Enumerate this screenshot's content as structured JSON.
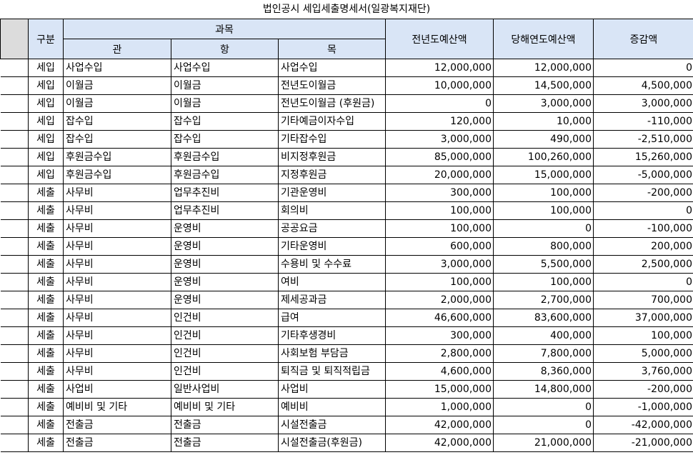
{
  "title": "법인공시 세입세출명세서(일광복지재단)",
  "headers": {
    "gubun": "구분",
    "gwamok": "과목",
    "gwan": "관",
    "hang": "항",
    "mok": "목",
    "prev": "전년도예산액",
    "curr": "당해연도예산액",
    "diff": "증감액"
  },
  "rows": [
    {
      "gubun": "세입",
      "gwan": "사업수입",
      "hang": "사업수입",
      "mok": "사업수입",
      "prev": "12,000,000",
      "curr": "12,000,000",
      "diff": "0"
    },
    {
      "gubun": "세입",
      "gwan": "이월금",
      "hang": "이월금",
      "mok": "전년도이월금",
      "prev": "10,000,000",
      "curr": "14,500,000",
      "diff": "4,500,000"
    },
    {
      "gubun": "세입",
      "gwan": "이월금",
      "hang": "이월금",
      "mok": "전년도이월금 (후원금)",
      "prev": "0",
      "curr": "3,000,000",
      "diff": "3,000,000"
    },
    {
      "gubun": "세입",
      "gwan": "잡수입",
      "hang": "잡수입",
      "mok": "기타예금이자수입",
      "prev": "120,000",
      "curr": "10,000",
      "diff": "-110,000"
    },
    {
      "gubun": "세입",
      "gwan": "잡수입",
      "hang": "잡수입",
      "mok": "기타잡수입",
      "prev": "3,000,000",
      "curr": "490,000",
      "diff": "-2,510,000"
    },
    {
      "gubun": "세입",
      "gwan": "후원금수입",
      "hang": "후원금수입",
      "mok": "비지정후원금",
      "prev": "85,000,000",
      "curr": "100,260,000",
      "diff": "15,260,000"
    },
    {
      "gubun": "세입",
      "gwan": "후원금수입",
      "hang": "후원금수입",
      "mok": "지정후원금",
      "prev": "20,000,000",
      "curr": "15,000,000",
      "diff": "-5,000,000"
    },
    {
      "gubun": "세출",
      "gwan": "사무비",
      "hang": "업무추진비",
      "mok": "기관운영비",
      "prev": "300,000",
      "curr": "100,000",
      "diff": "-200,000"
    },
    {
      "gubun": "세출",
      "gwan": "사무비",
      "hang": "업무추진비",
      "mok": "회의비",
      "prev": "100,000",
      "curr": "100,000",
      "diff": "0"
    },
    {
      "gubun": "세출",
      "gwan": "사무비",
      "hang": "운영비",
      "mok": "공공요금",
      "prev": "100,000",
      "curr": "0",
      "diff": "-100,000"
    },
    {
      "gubun": "세출",
      "gwan": "사무비",
      "hang": "운영비",
      "mok": "기타운영비",
      "prev": "600,000",
      "curr": "800,000",
      "diff": "200,000"
    },
    {
      "gubun": "세출",
      "gwan": "사무비",
      "hang": "운영비",
      "mok": "수용비 및 수수료",
      "prev": "3,000,000",
      "curr": "5,500,000",
      "diff": "2,500,000"
    },
    {
      "gubun": "세출",
      "gwan": "사무비",
      "hang": "운영비",
      "mok": "여비",
      "prev": "100,000",
      "curr": "100,000",
      "diff": "0"
    },
    {
      "gubun": "세출",
      "gwan": "사무비",
      "hang": "운영비",
      "mok": "제세공과금",
      "prev": "2,000,000",
      "curr": "2,700,000",
      "diff": "700,000"
    },
    {
      "gubun": "세출",
      "gwan": "사무비",
      "hang": "인건비",
      "mok": "급여",
      "prev": "46,600,000",
      "curr": "83,600,000",
      "diff": "37,000,000"
    },
    {
      "gubun": "세출",
      "gwan": "사무비",
      "hang": "인건비",
      "mok": "기타후생경비",
      "prev": "300,000",
      "curr": "400,000",
      "diff": "100,000"
    },
    {
      "gubun": "세출",
      "gwan": "사무비",
      "hang": "인건비",
      "mok": "사회보험 부담금",
      "prev": "2,800,000",
      "curr": "7,800,000",
      "diff": "5,000,000"
    },
    {
      "gubun": "세출",
      "gwan": "사무비",
      "hang": "인건비",
      "mok": "퇴직금 및 퇴직적립금",
      "prev": "4,600,000",
      "curr": "8,360,000",
      "diff": "3,760,000"
    },
    {
      "gubun": "세출",
      "gwan": "사업비",
      "hang": "일반사업비",
      "mok": "사업비",
      "prev": "15,000,000",
      "curr": "14,800,000",
      "diff": "-200,000"
    },
    {
      "gubun": "세출",
      "gwan": "예비비 및 기타",
      "hang": "예비비 및 기타",
      "mok": "예비비",
      "prev": "1,000,000",
      "curr": "0",
      "diff": "-1,000,000"
    },
    {
      "gubun": "세출",
      "gwan": "전출금",
      "hang": "전출금",
      "mok": "시설전출금",
      "prev": "42,000,000",
      "curr": "0",
      "diff": "-42,000,000"
    },
    {
      "gubun": "세출",
      "gwan": "전출금",
      "hang": "전출금",
      "mok": "시설전출금(후원금)",
      "prev": "42,000,000",
      "curr": "21,000,000",
      "diff": "-21,000,000"
    }
  ]
}
